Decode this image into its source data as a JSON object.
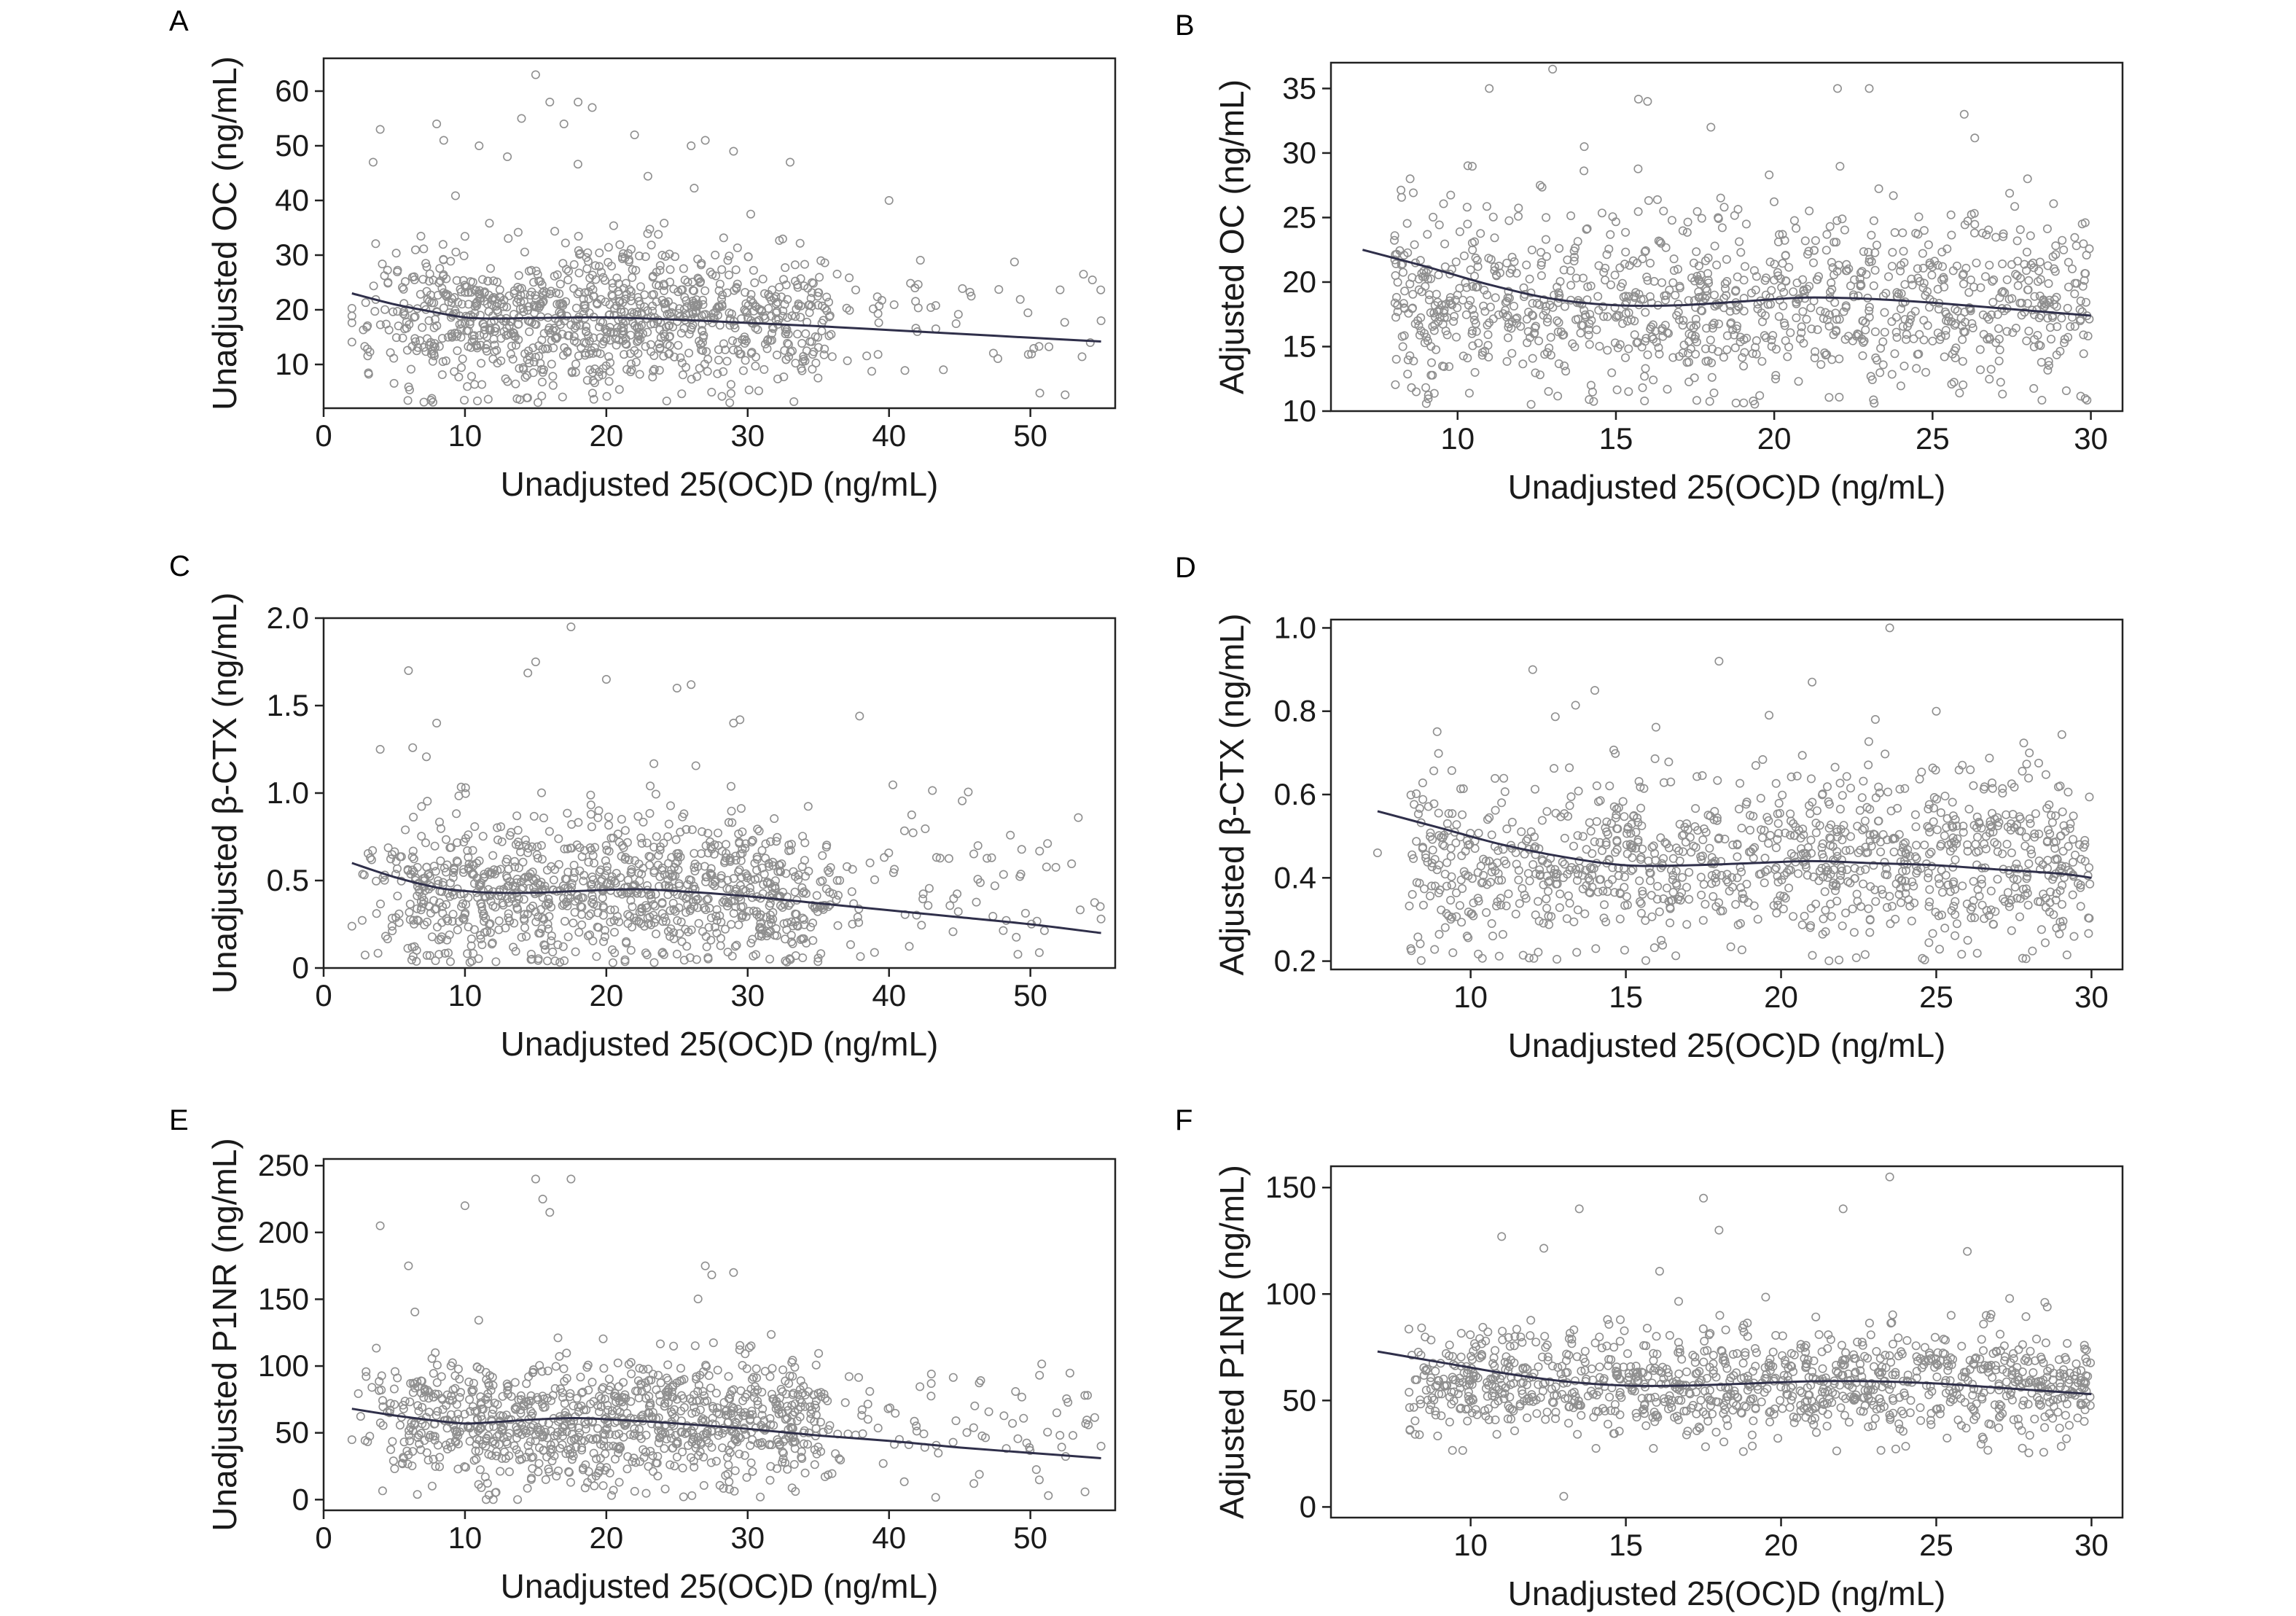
{
  "colors": {
    "point": "#8f8f8f",
    "curve": "#2f2f4a"
  },
  "chart_data": [
    {
      "panel": "A",
      "type": "scatter",
      "xlabel": "Unadjusted 25(OC)D (ng/mL)",
      "ylabel": "Unadjusted OC (ng/mL)",
      "xlim": [
        0,
        56
      ],
      "ylim": [
        2,
        66
      ],
      "xticks": [
        0,
        10,
        20,
        30,
        40,
        50
      ],
      "yticks": [
        10,
        20,
        30,
        40,
        50,
        60
      ],
      "xticklabels": [
        "0",
        "10",
        "20",
        "30",
        "40",
        "50"
      ],
      "yticklabels": [
        "10",
        "20",
        "30",
        "40",
        "50",
        "60"
      ],
      "x_range_points": [
        2,
        55
      ],
      "y_center": 18.5,
      "y_spread": 6,
      "y_min": 3,
      "n_points": 1100,
      "outliers": [
        [
          3.5,
          47
        ],
        [
          4,
          53
        ],
        [
          8,
          54
        ],
        [
          8.5,
          51
        ],
        [
          11,
          50
        ],
        [
          13,
          48
        ],
        [
          14,
          55
        ],
        [
          15,
          63
        ],
        [
          16,
          58
        ],
        [
          17,
          54
        ],
        [
          18,
          58
        ],
        [
          19,
          57
        ],
        [
          22,
          52
        ],
        [
          26,
          50
        ],
        [
          27,
          51
        ],
        [
          29,
          49
        ],
        [
          33,
          47
        ],
        [
          40,
          40
        ],
        [
          42,
          16
        ],
        [
          55,
          18
        ]
      ],
      "smooth": {
        "x": [
          2,
          5,
          8,
          10,
          12,
          15,
          20,
          25,
          30,
          35,
          40,
          45,
          50,
          55
        ],
        "y": [
          23,
          21,
          19.5,
          18.6,
          18.4,
          18.5,
          18.6,
          18.2,
          17.6,
          17,
          16.3,
          15.6,
          14.9,
          14.2
        ]
      }
    },
    {
      "panel": "B",
      "type": "scatter",
      "xlabel": "Unadjusted 25(OC)D (ng/mL)",
      "ylabel": "Adjusted OC (ng/mL)",
      "xlim": [
        6,
        31
      ],
      "ylim": [
        10,
        37
      ],
      "xticks": [
        10,
        15,
        20,
        25,
        30
      ],
      "yticks": [
        10,
        15,
        20,
        25,
        30,
        35
      ],
      "xticklabels": [
        "10",
        "15",
        "20",
        "25",
        "30"
      ],
      "yticklabels": [
        "10",
        "15",
        "20",
        "25",
        "30",
        "35"
      ],
      "x_range_points": [
        7,
        30
      ],
      "y_center": 18.5,
      "y_spread": 3.2,
      "y_min": 10.5,
      "n_points": 1100,
      "outliers": [
        [
          11,
          35
        ],
        [
          13,
          36.5
        ],
        [
          16,
          34
        ],
        [
          18,
          32
        ],
        [
          22,
          35
        ],
        [
          23,
          35
        ],
        [
          26,
          33
        ],
        [
          14,
          30.5
        ],
        [
          28,
          28
        ],
        [
          8.5,
          28
        ]
      ],
      "smooth": {
        "x": [
          7,
          9,
          11,
          13,
          15,
          17,
          19,
          21,
          23,
          25,
          27,
          29,
          30
        ],
        "y": [
          22.5,
          21.2,
          19.8,
          18.7,
          18.2,
          18.2,
          18.5,
          18.8,
          18.7,
          18.4,
          18,
          17.6,
          17.4
        ]
      }
    },
    {
      "panel": "C",
      "type": "scatter",
      "xlabel": "Unadjusted 25(OC)D (ng/mL)",
      "ylabel": "Unadjusted β-CTX (ng/mL)",
      "xlim": [
        0,
        56
      ],
      "ylim": [
        0,
        2.0
      ],
      "xticks": [
        0,
        10,
        20,
        30,
        40,
        50
      ],
      "yticks": [
        0,
        0.5,
        1.0,
        1.5,
        2.0
      ],
      "xticklabels": [
        "0",
        "10",
        "20",
        "30",
        "40",
        "50"
      ],
      "yticklabels": [
        "0",
        "0.5",
        "1.0",
        "1.5",
        "2.0"
      ],
      "x_range_points": [
        2,
        55
      ],
      "y_center": 0.44,
      "y_spread": 0.2,
      "y_min": 0.03,
      "n_points": 1100,
      "outliers": [
        [
          6,
          1.7
        ],
        [
          15,
          1.75
        ],
        [
          17.5,
          1.95
        ],
        [
          20,
          1.65
        ],
        [
          25,
          1.6
        ],
        [
          26,
          1.62
        ],
        [
          8,
          1.4
        ],
        [
          29,
          1.4
        ],
        [
          4,
          1.25
        ],
        [
          55,
          0.28
        ]
      ],
      "smooth": {
        "x": [
          2,
          5,
          8,
          10,
          12,
          15,
          18,
          22,
          25,
          30,
          35,
          40,
          45,
          50,
          55
        ],
        "y": [
          0.6,
          0.52,
          0.46,
          0.44,
          0.43,
          0.43,
          0.44,
          0.45,
          0.44,
          0.41,
          0.37,
          0.33,
          0.29,
          0.25,
          0.2
        ]
      }
    },
    {
      "panel": "D",
      "type": "scatter",
      "xlabel": "Unadjusted 25(OC)D (ng/mL)",
      "ylabel": "Adjusted β-CTX (ng/mL)",
      "xlim": [
        5.5,
        31
      ],
      "ylim": [
        0.18,
        1.02
      ],
      "xticks": [
        10,
        15,
        20,
        25,
        30
      ],
      "yticks": [
        0.2,
        0.4,
        0.6,
        0.8,
        1.0
      ],
      "xticklabels": [
        "10",
        "15",
        "20",
        "25",
        "30"
      ],
      "yticklabels": [
        "0.2",
        "0.4",
        "0.6",
        "0.8",
        "1.0"
      ],
      "x_range_points": [
        7,
        30
      ],
      "y_center": 0.44,
      "y_spread": 0.1,
      "y_min": 0.2,
      "n_points": 1100,
      "outliers": [
        [
          23.5,
          1.0
        ],
        [
          12,
          0.9
        ],
        [
          18,
          0.92
        ],
        [
          21,
          0.87
        ],
        [
          14,
          0.85
        ],
        [
          25,
          0.8
        ],
        [
          28,
          0.7
        ],
        [
          7,
          0.46
        ]
      ],
      "smooth": {
        "x": [
          7,
          9,
          11,
          13,
          15,
          17,
          19,
          21,
          23,
          25,
          27,
          29,
          30
        ],
        "y": [
          0.56,
          0.52,
          0.48,
          0.45,
          0.43,
          0.43,
          0.435,
          0.44,
          0.435,
          0.43,
          0.42,
          0.41,
          0.4
        ]
      }
    },
    {
      "panel": "E",
      "type": "scatter",
      "xlabel": "Unadjusted 25(OC)D (ng/mL)",
      "ylabel": "Unadjusted P1NR (ng/mL)",
      "xlim": [
        0,
        56
      ],
      "ylim": [
        -8,
        255
      ],
      "xticks": [
        0,
        10,
        20,
        30,
        40,
        50
      ],
      "yticks": [
        0,
        50,
        100,
        150,
        200,
        250
      ],
      "xticklabels": [
        "0",
        "10",
        "20",
        "30",
        "40",
        "50"
      ],
      "yticklabels": [
        "0",
        "50",
        "100",
        "150",
        "200",
        "250"
      ],
      "x_range_points": [
        2,
        55
      ],
      "y_center": 58,
      "y_spread": 22,
      "y_min": 0,
      "n_points": 1100,
      "outliers": [
        [
          4,
          205
        ],
        [
          10,
          220
        ],
        [
          15,
          240
        ],
        [
          15.5,
          225
        ],
        [
          16,
          215
        ],
        [
          17.5,
          240
        ],
        [
          27,
          175
        ],
        [
          29,
          170
        ],
        [
          6,
          175
        ],
        [
          12,
          0
        ],
        [
          46,
          12
        ],
        [
          55,
          40
        ]
      ],
      "smooth": {
        "x": [
          2,
          5,
          8,
          10,
          12,
          15,
          18,
          22,
          25,
          30,
          35,
          40,
          45,
          50,
          55
        ],
        "y": [
          68,
          63,
          59,
          57,
          58,
          60,
          61,
          59,
          57,
          53,
          48,
          44,
          39,
          35,
          31
        ]
      }
    },
    {
      "panel": "F",
      "type": "scatter",
      "xlabel": "Unadjusted 25(OC)D (ng/mL)",
      "ylabel": "Adjusted P1NR (ng/mL)",
      "xlim": [
        5.5,
        31
      ],
      "ylim": [
        -5,
        160
      ],
      "xticks": [
        10,
        15,
        20,
        25,
        30
      ],
      "yticks": [
        0,
        50,
        100,
        150
      ],
      "xticklabels": [
        "10",
        "15",
        "20",
        "25",
        "30"
      ],
      "yticklabels": [
        "0",
        "50",
        "100",
        "150"
      ],
      "x_range_points": [
        7,
        30
      ],
      "y_center": 58,
      "y_spread": 12,
      "y_min": 25,
      "n_points": 1100,
      "outliers": [
        [
          23.5,
          155
        ],
        [
          13.5,
          140
        ],
        [
          22,
          140
        ],
        [
          17.5,
          145
        ],
        [
          26,
          120
        ],
        [
          18,
          130
        ],
        [
          11,
          127
        ],
        [
          13,
          5
        ]
      ],
      "smooth": {
        "x": [
          7,
          9,
          11,
          13,
          15,
          17,
          19,
          21,
          23,
          25,
          27,
          29,
          30
        ],
        "y": [
          73,
          68,
          63,
          59,
          57,
          57,
          58,
          59,
          59,
          58,
          56,
          54,
          53
        ]
      }
    }
  ]
}
